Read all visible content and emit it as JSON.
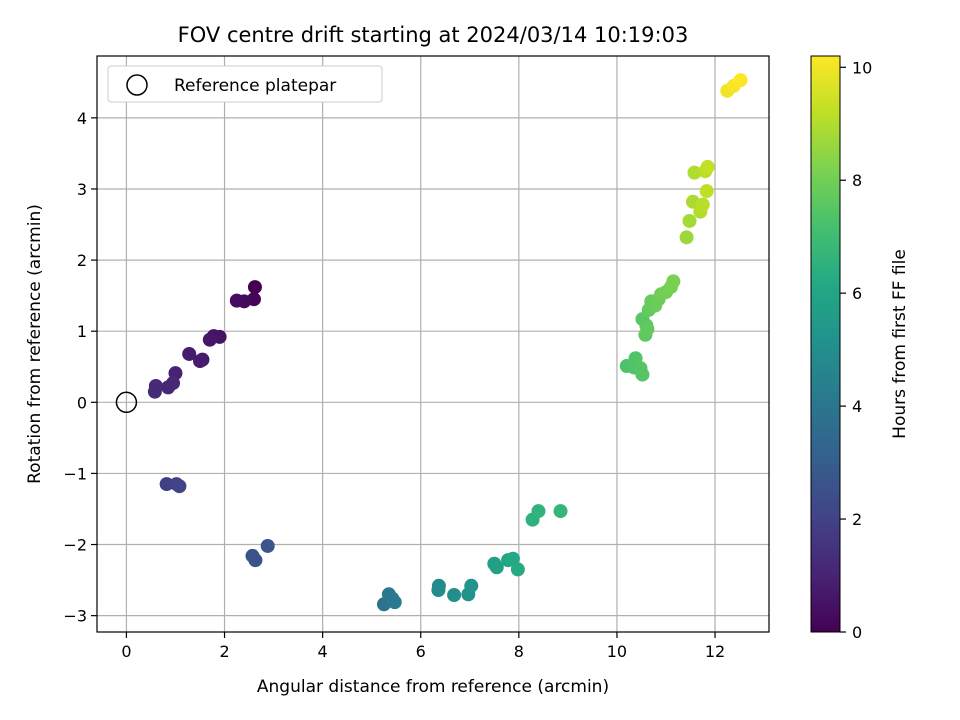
{
  "chart_data": {
    "type": "scatter",
    "title": "FOV centre drift starting at 2024/03/14 10:19:03",
    "xlabel": "Angular distance from reference (arcmin)",
    "ylabel": "Rotation from reference (arcmin)",
    "xlim": [
      -0.6,
      13.1
    ],
    "ylim": [
      -3.23,
      4.87
    ],
    "xticks": [
      0,
      2,
      4,
      6,
      8,
      10,
      12
    ],
    "yticks": [
      -3,
      -2,
      -1,
      0,
      1,
      2,
      3,
      4
    ],
    "grid": true,
    "legend": {
      "position": "top-left",
      "entries": [
        "Reference platepar"
      ]
    },
    "reference_point": {
      "x": 0,
      "y": 0
    },
    "colorbar": {
      "label": "Hours from first FF file",
      "range": [
        0,
        10.2
      ],
      "ticks": [
        0,
        2,
        4,
        6,
        8,
        10
      ],
      "colormap": "viridis"
    },
    "series": [
      {
        "points": [
          {
            "x": 2.62,
            "y": 1.62,
            "h": 0.0
          },
          {
            "x": 2.6,
            "y": 1.45,
            "h": 0.15
          },
          {
            "x": 2.4,
            "y": 1.42,
            "h": 0.25
          },
          {
            "x": 2.25,
            "y": 1.43,
            "h": 0.35
          },
          {
            "x": 1.9,
            "y": 0.92,
            "h": 0.5
          },
          {
            "x": 1.78,
            "y": 0.93,
            "h": 0.55
          },
          {
            "x": 1.7,
            "y": 0.88,
            "h": 0.6
          },
          {
            "x": 1.28,
            "y": 0.68,
            "h": 0.8
          },
          {
            "x": 1.55,
            "y": 0.6,
            "h": 0.75
          },
          {
            "x": 1.5,
            "y": 0.58,
            "h": 0.8
          },
          {
            "x": 1.0,
            "y": 0.41,
            "h": 1.0
          },
          {
            "x": 0.95,
            "y": 0.27,
            "h": 1.1
          },
          {
            "x": 0.85,
            "y": 0.21,
            "h": 1.15
          },
          {
            "x": 0.6,
            "y": 0.23,
            "h": 1.2
          },
          {
            "x": 0.58,
            "y": 0.15,
            "h": 1.25
          },
          {
            "x": 0.82,
            "y": -1.15,
            "h": 1.9
          },
          {
            "x": 1.02,
            "y": -1.15,
            "h": 2.0
          },
          {
            "x": 1.08,
            "y": -1.18,
            "h": 2.05
          },
          {
            "x": 2.57,
            "y": -2.16,
            "h": 2.6
          },
          {
            "x": 2.63,
            "y": -2.22,
            "h": 2.65
          },
          {
            "x": 2.88,
            "y": -2.02,
            "h": 2.7
          },
          {
            "x": 5.25,
            "y": -2.84,
            "h": 3.9
          },
          {
            "x": 5.35,
            "y": -2.7,
            "h": 4.05
          },
          {
            "x": 5.42,
            "y": -2.76,
            "h": 4.1
          },
          {
            "x": 5.47,
            "y": -2.81,
            "h": 4.15
          },
          {
            "x": 6.37,
            "y": -2.58,
            "h": 4.8
          },
          {
            "x": 6.36,
            "y": -2.64,
            "h": 4.85
          },
          {
            "x": 6.68,
            "y": -2.71,
            "h": 5.0
          },
          {
            "x": 6.97,
            "y": -2.7,
            "h": 5.2
          },
          {
            "x": 7.03,
            "y": -2.58,
            "h": 5.25
          },
          {
            "x": 7.5,
            "y": -2.27,
            "h": 5.7
          },
          {
            "x": 7.55,
            "y": -2.32,
            "h": 5.75
          },
          {
            "x": 7.78,
            "y": -2.22,
            "h": 6.0
          },
          {
            "x": 7.88,
            "y": -2.2,
            "h": 6.1
          },
          {
            "x": 7.98,
            "y": -2.35,
            "h": 6.2
          },
          {
            "x": 8.28,
            "y": -1.65,
            "h": 6.5
          },
          {
            "x": 8.4,
            "y": -1.53,
            "h": 6.6
          },
          {
            "x": 8.85,
            "y": -1.53,
            "h": 6.7
          },
          {
            "x": 10.2,
            "y": 0.51,
            "h": 7.3
          },
          {
            "x": 10.35,
            "y": 0.49,
            "h": 7.35
          },
          {
            "x": 10.38,
            "y": 0.62,
            "h": 7.4
          },
          {
            "x": 10.48,
            "y": 0.48,
            "h": 7.45
          },
          {
            "x": 10.52,
            "y": 0.39,
            "h": 7.5
          },
          {
            "x": 10.52,
            "y": 1.17,
            "h": 7.55
          },
          {
            "x": 10.6,
            "y": 1.08,
            "h": 7.6
          },
          {
            "x": 10.58,
            "y": 0.95,
            "h": 7.65
          },
          {
            "x": 10.62,
            "y": 1.03,
            "h": 7.7
          },
          {
            "x": 10.65,
            "y": 1.3,
            "h": 7.75
          },
          {
            "x": 10.7,
            "y": 1.42,
            "h": 7.8
          },
          {
            "x": 10.78,
            "y": 1.36,
            "h": 7.85
          },
          {
            "x": 10.85,
            "y": 1.45,
            "h": 7.9
          },
          {
            "x": 10.9,
            "y": 1.52,
            "h": 7.95
          },
          {
            "x": 11.0,
            "y": 1.55,
            "h": 8.0
          },
          {
            "x": 11.1,
            "y": 1.62,
            "h": 8.1
          },
          {
            "x": 11.15,
            "y": 1.7,
            "h": 8.15
          },
          {
            "x": 11.42,
            "y": 2.32,
            "h": 8.7
          },
          {
            "x": 11.48,
            "y": 2.55,
            "h": 8.8
          },
          {
            "x": 11.55,
            "y": 2.82,
            "h": 8.9
          },
          {
            "x": 11.58,
            "y": 3.23,
            "h": 9.0
          },
          {
            "x": 11.7,
            "y": 2.68,
            "h": 9.05
          },
          {
            "x": 11.75,
            "y": 2.78,
            "h": 9.1
          },
          {
            "x": 11.8,
            "y": 3.25,
            "h": 9.15
          },
          {
            "x": 11.83,
            "y": 2.97,
            "h": 9.2
          },
          {
            "x": 11.85,
            "y": 3.31,
            "h": 9.25
          },
          {
            "x": 12.25,
            "y": 4.38,
            "h": 10.0
          },
          {
            "x": 12.38,
            "y": 4.45,
            "h": 10.1
          },
          {
            "x": 12.52,
            "y": 4.53,
            "h": 10.2
          }
        ]
      }
    ]
  }
}
